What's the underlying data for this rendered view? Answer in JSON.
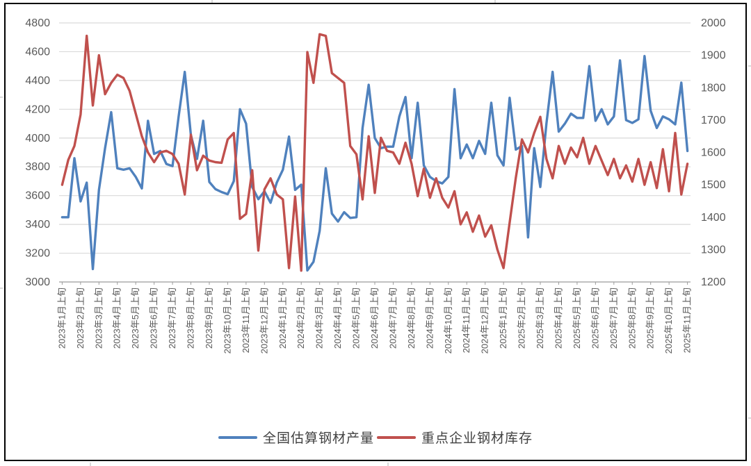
{
  "chart_data": {
    "type": "line",
    "title": "",
    "points_per_tick": 3,
    "x_tick_labels": [
      "2023年1月上旬",
      "2023年2月上旬",
      "2023年3月上旬",
      "2023年4月上旬",
      "2023年5月上旬",
      "2023年6月上旬",
      "2023年7月上旬",
      "2023年8月上旬",
      "2023年9月上旬",
      "2023年10月上旬",
      "2023年11月上旬",
      "2023年12月上旬",
      "2024年1月上旬",
      "2024年2月上旬",
      "2024年3月上旬",
      "2024年4月上旬",
      "2024年5月上旬",
      "2024年6月上旬",
      "2024年7月上旬",
      "2024年8月上旬",
      "2024年9月上旬",
      "2024年10月上旬",
      "2024年11月上旬",
      "2024年12月上旬",
      "2025年1月上旬",
      "2025年2月上旬",
      "2025年3月上旬",
      "2025年4月上旬",
      "2025年5月上旬",
      "2025年6月上旬",
      "2025年7月上旬",
      "2025年8月上旬",
      "2025年9月上旬",
      "2025年10月上旬",
      "2025年11月上旬"
    ],
    "left_axis": {
      "min": 3000,
      "max": 4800,
      "step": 200,
      "ticks": [
        3000,
        3200,
        3400,
        3600,
        3800,
        4000,
        4200,
        4400,
        4600,
        4800
      ]
    },
    "right_axis": {
      "min": 1200,
      "max": 2000,
      "step": 100,
      "ticks": [
        1200,
        1300,
        1400,
        1500,
        1600,
        1700,
        1800,
        1900,
        2000
      ]
    },
    "grid": true,
    "legend_position": "bottom",
    "series": [
      {
        "name": "全国估算钢材产量",
        "axis": "left",
        "color": "#4F81BD",
        "values": [
          3450,
          3450,
          3860,
          3560,
          3690,
          3090,
          3640,
          3930,
          4180,
          3790,
          3780,
          3790,
          3730,
          3650,
          4120,
          3890,
          3910,
          3820,
          3805,
          4150,
          4460,
          4020,
          3855,
          4120,
          3695,
          3645,
          3625,
          3610,
          3700,
          4200,
          4100,
          3660,
          3575,
          3630,
          3550,
          3690,
          3780,
          4010,
          3640,
          3676,
          3080,
          3140,
          3355,
          3790,
          3475,
          3420,
          3485,
          3445,
          3450,
          4070,
          4370,
          4000,
          3930,
          3940,
          3940,
          4150,
          4285,
          3860,
          4245,
          3810,
          3730,
          3700,
          3685,
          3730,
          4340,
          3860,
          3955,
          3860,
          3980,
          3890,
          4245,
          3880,
          3810,
          4280,
          3920,
          3945,
          3310,
          3930,
          3660,
          4100,
          4460,
          4045,
          4100,
          4170,
          4140,
          4140,
          4500,
          4120,
          4200,
          4095,
          4150,
          4540,
          4125,
          4105,
          4130,
          4570,
          4190,
          4070,
          4150,
          4130,
          4095,
          4385,
          3910
        ]
      },
      {
        "name": "重点企业钢材库存",
        "axis": "right",
        "color": "#C0504D",
        "values": [
          1500,
          1577,
          1620,
          1717,
          1960,
          1745,
          1900,
          1780,
          1815,
          1840,
          1830,
          1790,
          1720,
          1650,
          1600,
          1570,
          1600,
          1605,
          1595,
          1565,
          1470,
          1655,
          1545,
          1590,
          1575,
          1570,
          1568,
          1640,
          1660,
          1395,
          1410,
          1545,
          1297,
          1486,
          1520,
          1470,
          1455,
          1243,
          1464,
          1235,
          1910,
          1815,
          1965,
          1960,
          1845,
          1830,
          1815,
          1620,
          1594,
          1455,
          1650,
          1475,
          1645,
          1605,
          1600,
          1565,
          1630,
          1565,
          1465,
          1550,
          1460,
          1520,
          1460,
          1430,
          1480,
          1378,
          1415,
          1355,
          1405,
          1340,
          1375,
          1300,
          1243,
          1383,
          1522,
          1640,
          1600,
          1660,
          1710,
          1580,
          1520,
          1620,
          1565,
          1615,
          1585,
          1645,
          1565,
          1620,
          1575,
          1530,
          1580,
          1520,
          1560,
          1510,
          1580,
          1500,
          1570,
          1490,
          1610,
          1480,
          1660,
          1470,
          1565
        ]
      }
    ]
  },
  "legend": {
    "items": [
      {
        "label": "全国估算钢材产量",
        "color": "#4F81BD"
      },
      {
        "label": "重点企业钢材库存",
        "color": "#C0504D"
      }
    ]
  },
  "colors": {
    "production_line": "#4F81BD",
    "inventory_line": "#C0504D",
    "gridline": "#d9d9d9",
    "axis_text": "#595959",
    "legend_text": "#404040",
    "chart_border": "#000000",
    "background": "#ffffff"
  }
}
